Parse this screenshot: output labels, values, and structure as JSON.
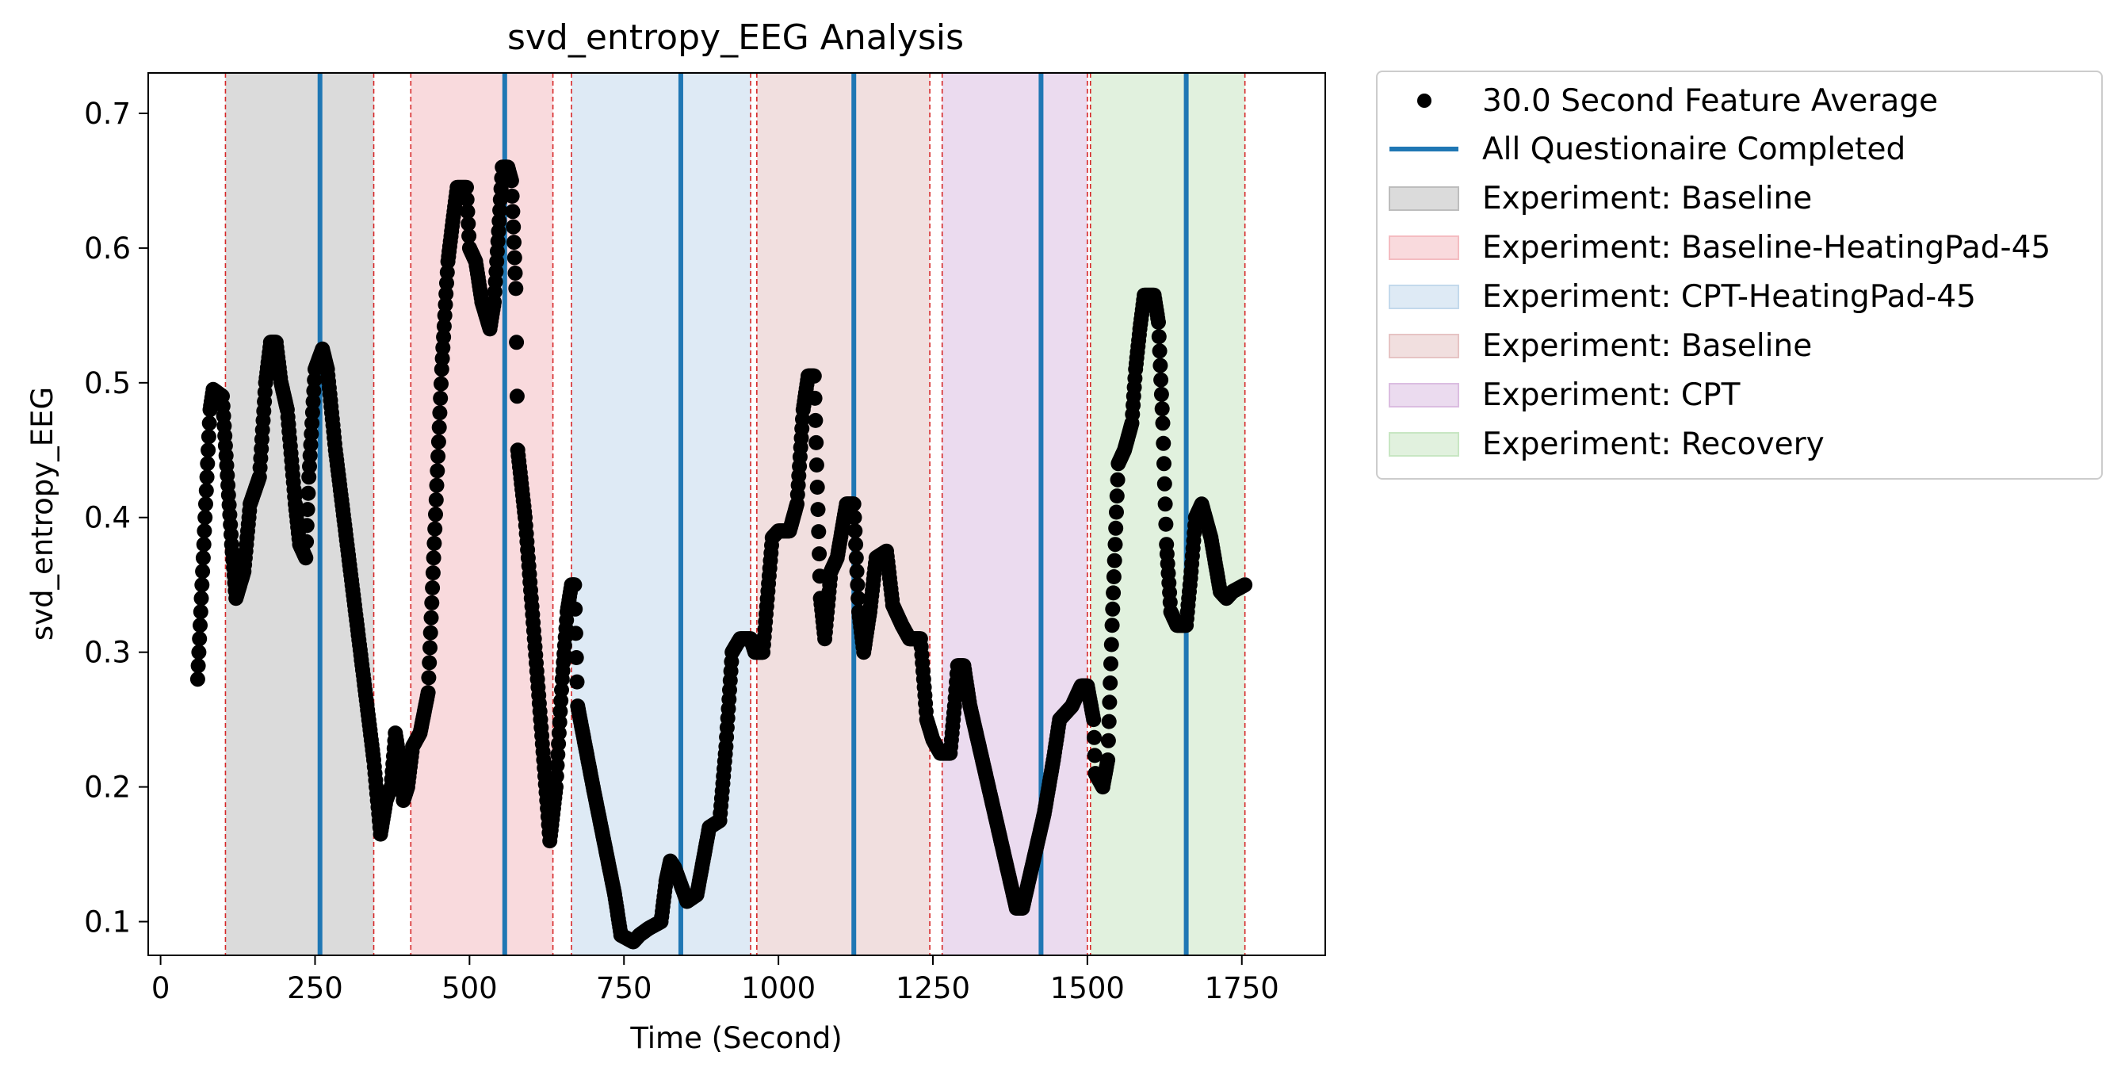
{
  "chart_data": {
    "type": "scatter",
    "title": "svd_entropy_EEG Analysis",
    "xlabel": "Time (Second)",
    "ylabel": "svd_entropy_EEG",
    "xlim": [
      -20,
      1885
    ],
    "ylim": [
      0.075,
      0.73
    ],
    "xticks": [
      0,
      250,
      500,
      750,
      1000,
      1250,
      1500,
      1750
    ],
    "yticks": [
      0.1,
      0.2,
      0.3,
      0.4,
      0.5,
      0.6,
      0.7
    ],
    "xtick_labels": [
      "0",
      "250",
      "500",
      "750",
      "1000",
      "1250",
      "1500",
      "1750"
    ],
    "ytick_labels": [
      "0.1",
      "0.2",
      "0.3",
      "0.4",
      "0.5",
      "0.6",
      "0.7"
    ],
    "grid": false,
    "legend_position": "outside-right",
    "series_label": "30.0 Second Feature Average",
    "series_color": "#000000",
    "vline_label": "All Questionaire Completed",
    "vline_color": "#1f77b4",
    "questionnaire_times": [
      258,
      557,
      842,
      1122,
      1425,
      1660
    ],
    "boundary_color": "#d62728",
    "phases": [
      {
        "label": "Experiment: Baseline",
        "start": 105,
        "end": 345,
        "color": "#bdbdbd"
      },
      {
        "label": "Experiment: Baseline-HeatingPad-45",
        "start": 405,
        "end": 635,
        "color": "#f4bcc1"
      },
      {
        "label": "Experiment: CPT-HeatingPad-45",
        "start": 665,
        "end": 955,
        "color": "#c3d9ec"
      },
      {
        "label": "Experiment: Baseline",
        "start": 965,
        "end": 1245,
        "color": "#e6c4c4"
      },
      {
        "label": "Experiment: CPT",
        "start": 1265,
        "end": 1500,
        "color": "#dbbde1"
      },
      {
        "label": "Experiment: Recovery",
        "start": 1505,
        "end": 1755,
        "color": "#c8e6c3"
      }
    ],
    "keypoints": [
      [
        60,
        0.28
      ],
      [
        80,
        0.48
      ],
      [
        85,
        0.495
      ],
      [
        100,
        0.49
      ],
      [
        115,
        0.38
      ],
      [
        122,
        0.34
      ],
      [
        135,
        0.36
      ],
      [
        145,
        0.41
      ],
      [
        160,
        0.43
      ],
      [
        170,
        0.5
      ],
      [
        178,
        0.53
      ],
      [
        187,
        0.53
      ],
      [
        195,
        0.5
      ],
      [
        205,
        0.48
      ],
      [
        218,
        0.41
      ],
      [
        225,
        0.38
      ],
      [
        235,
        0.37
      ],
      [
        240,
        0.43
      ],
      [
        250,
        0.51
      ],
      [
        262,
        0.525
      ],
      [
        270,
        0.51
      ],
      [
        283,
        0.45
      ],
      [
        345,
        0.22
      ],
      [
        356,
        0.165
      ],
      [
        365,
        0.19
      ],
      [
        373,
        0.2
      ],
      [
        380,
        0.24
      ],
      [
        387,
        0.22
      ],
      [
        393,
        0.19
      ],
      [
        400,
        0.2
      ],
      [
        408,
        0.23
      ],
      [
        420,
        0.24
      ],
      [
        433,
        0.27
      ],
      [
        442,
        0.37
      ],
      [
        455,
        0.51
      ],
      [
        465,
        0.59
      ],
      [
        473,
        0.62
      ],
      [
        480,
        0.645
      ],
      [
        495,
        0.645
      ],
      [
        500,
        0.6
      ],
      [
        510,
        0.59
      ],
      [
        520,
        0.56
      ],
      [
        533,
        0.54
      ],
      [
        540,
        0.56
      ],
      [
        548,
        0.62
      ],
      [
        553,
        0.66
      ],
      [
        562,
        0.66
      ],
      [
        568,
        0.65
      ],
      [
        575,
        0.57
      ],
      [
        578,
        0.45
      ],
      [
        590,
        0.4
      ],
      [
        620,
        0.22
      ],
      [
        630,
        0.16
      ],
      [
        640,
        0.2
      ],
      [
        650,
        0.28
      ],
      [
        658,
        0.33
      ],
      [
        665,
        0.35
      ],
      [
        670,
        0.35
      ],
      [
        675,
        0.26
      ],
      [
        700,
        0.2
      ],
      [
        735,
        0.12
      ],
      [
        745,
        0.09
      ],
      [
        765,
        0.085
      ],
      [
        775,
        0.09
      ],
      [
        790,
        0.095
      ],
      [
        810,
        0.1
      ],
      [
        818,
        0.13
      ],
      [
        825,
        0.145
      ],
      [
        832,
        0.14
      ],
      [
        840,
        0.13
      ],
      [
        852,
        0.115
      ],
      [
        868,
        0.12
      ],
      [
        880,
        0.15
      ],
      [
        888,
        0.17
      ],
      [
        905,
        0.175
      ],
      [
        915,
        0.23
      ],
      [
        925,
        0.3
      ],
      [
        938,
        0.31
      ],
      [
        955,
        0.31
      ],
      [
        962,
        0.3
      ],
      [
        975,
        0.3
      ],
      [
        990,
        0.385
      ],
      [
        1000,
        0.39
      ],
      [
        1018,
        0.39
      ],
      [
        1030,
        0.41
      ],
      [
        1040,
        0.48
      ],
      [
        1048,
        0.505
      ],
      [
        1058,
        0.505
      ],
      [
        1068,
        0.34
      ],
      [
        1075,
        0.31
      ],
      [
        1085,
        0.36
      ],
      [
        1095,
        0.37
      ],
      [
        1110,
        0.41
      ],
      [
        1122,
        0.41
      ],
      [
        1130,
        0.33
      ],
      [
        1138,
        0.3
      ],
      [
        1148,
        0.33
      ],
      [
        1158,
        0.37
      ],
      [
        1175,
        0.375
      ],
      [
        1185,
        0.335
      ],
      [
        1200,
        0.32
      ],
      [
        1212,
        0.31
      ],
      [
        1230,
        0.31
      ],
      [
        1240,
        0.25
      ],
      [
        1250,
        0.235
      ],
      [
        1262,
        0.225
      ],
      [
        1278,
        0.225
      ],
      [
        1285,
        0.26
      ],
      [
        1290,
        0.29
      ],
      [
        1300,
        0.29
      ],
      [
        1310,
        0.26
      ],
      [
        1370,
        0.14
      ],
      [
        1385,
        0.11
      ],
      [
        1395,
        0.11
      ],
      [
        1405,
        0.13
      ],
      [
        1430,
        0.18
      ],
      [
        1445,
        0.22
      ],
      [
        1455,
        0.25
      ],
      [
        1475,
        0.26
      ],
      [
        1490,
        0.275
      ],
      [
        1500,
        0.275
      ],
      [
        1510,
        0.25
      ],
      [
        1513,
        0.21
      ],
      [
        1525,
        0.2
      ],
      [
        1533,
        0.22
      ],
      [
        1540,
        0.32
      ],
      [
        1550,
        0.44
      ],
      [
        1560,
        0.45
      ],
      [
        1572,
        0.47
      ],
      [
        1578,
        0.51
      ],
      [
        1585,
        0.54
      ],
      [
        1592,
        0.565
      ],
      [
        1608,
        0.565
      ],
      [
        1615,
        0.545
      ],
      [
        1622,
        0.47
      ],
      [
        1628,
        0.38
      ],
      [
        1635,
        0.33
      ],
      [
        1645,
        0.32
      ],
      [
        1660,
        0.32
      ],
      [
        1668,
        0.36
      ],
      [
        1675,
        0.4
      ],
      [
        1685,
        0.41
      ],
      [
        1700,
        0.385
      ],
      [
        1715,
        0.345
      ],
      [
        1725,
        0.34
      ],
      [
        1735,
        0.345
      ],
      [
        1755,
        0.35
      ]
    ]
  }
}
